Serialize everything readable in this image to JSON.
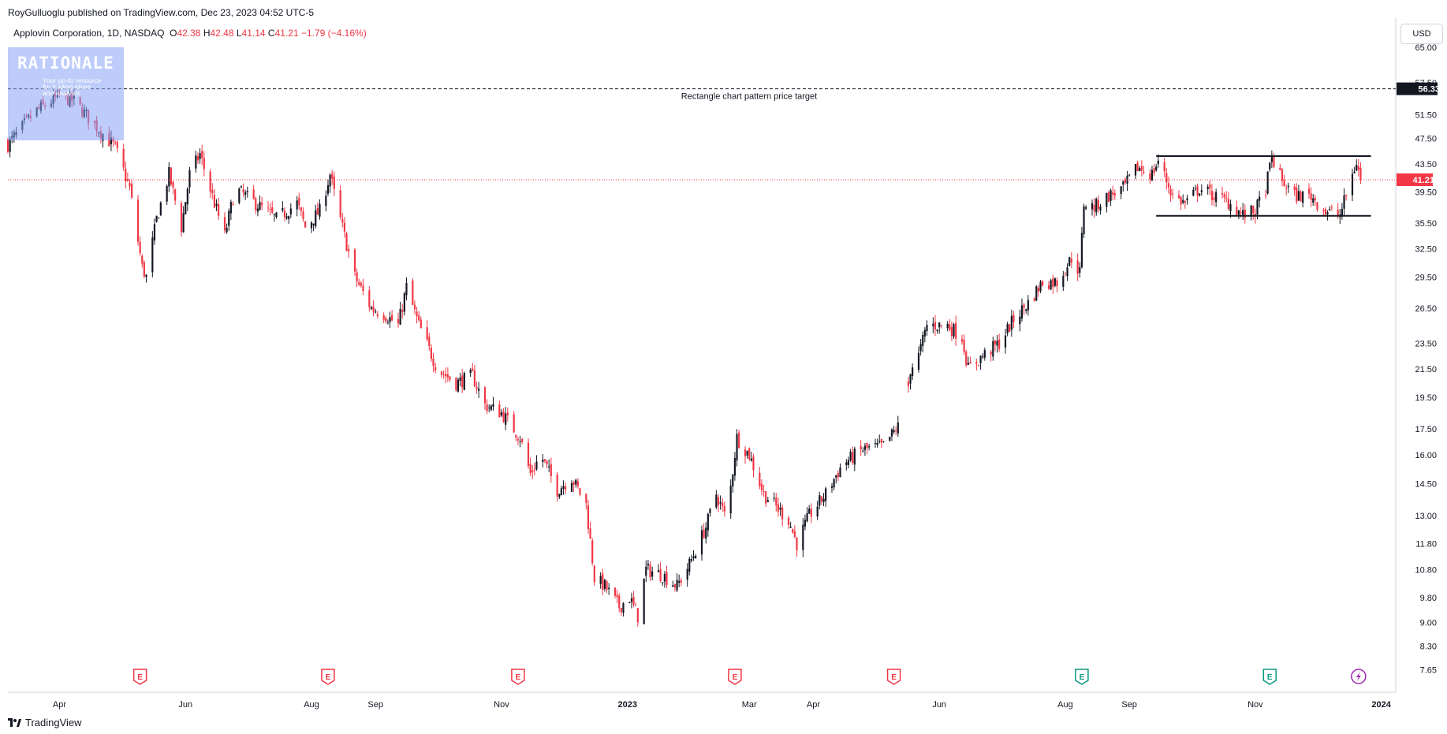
{
  "header": {
    "published": "RoyGulluoglu published on TradingView.com, Dec 23, 2023 04:52 UTC-5",
    "symbol_desc": "Applovin Corporation, 1D, NASDAQ",
    "o_label": "O",
    "o_value": "42.38",
    "h_label": "H",
    "h_value": "42.48",
    "l_label": "L",
    "l_value": "41.14",
    "c_label": "C",
    "c_value": "41.21",
    "change": "−1.79 (−4.16%)"
  },
  "watermark": {
    "name": "RATIONALE",
    "tagline_1": "Your go-to resource",
    "tagline_2": "for trading ideas",
    "tagline_3": "and analysis"
  },
  "currency_button": "USD",
  "brand": {
    "label": "TradingView"
  },
  "colors": {
    "up": "#131722",
    "down": "#f23645",
    "grid": "#f0f3fa",
    "last_price": "#f23645",
    "earnings_red": "#f23645",
    "earnings_green": "#089981",
    "dividend_purple": "#9c27b0"
  },
  "chart_data": {
    "type": "candlestick",
    "title": "Applovin Corporation, 1D, NASDAQ",
    "y_scale": "log",
    "ylim": [
      7.2,
      72
    ],
    "y_ticks": [
      "65.00",
      "57.50",
      "51.50",
      "47.50",
      "43.50",
      "39.50",
      "35.50",
      "32.50",
      "29.50",
      "26.50",
      "23.50",
      "21.50",
      "19.50",
      "17.50",
      "16.00",
      "14.50",
      "13.00",
      "11.80",
      "10.80",
      "9.80",
      "9.00",
      "8.30",
      "7.65"
    ],
    "x_range": [
      "2022-03-07",
      "2024-01-08"
    ],
    "x_ticks": [
      {
        "label": "Apr",
        "date": "2022-04-01"
      },
      {
        "label": "Jun",
        "date": "2022-06-01"
      },
      {
        "label": "Aug",
        "date": "2022-08-01"
      },
      {
        "label": "Sep",
        "date": "2022-09-01"
      },
      {
        "label": "Nov",
        "date": "2022-11-01"
      },
      {
        "label": "2023",
        "date": "2023-01-01",
        "bold": true
      },
      {
        "label": "Mar",
        "date": "2023-03-01"
      },
      {
        "label": "Apr",
        "date": "2023-04-01"
      },
      {
        "label": "Jun",
        "date": "2023-06-01"
      },
      {
        "label": "Aug",
        "date": "2023-08-01"
      },
      {
        "label": "Sep",
        "date": "2023-09-01"
      },
      {
        "label": "Nov",
        "date": "2023-11-01"
      },
      {
        "label": "2024",
        "date": "2024-01-01",
        "bold": true
      }
    ],
    "close_path": [
      [
        "2022-03-07",
        46.5
      ],
      [
        "2022-03-20",
        52
      ],
      [
        "2022-04-01",
        55
      ],
      [
        "2022-04-08",
        54
      ],
      [
        "2022-04-20",
        49
      ],
      [
        "2022-04-28",
        46
      ],
      [
        "2022-05-05",
        40
      ],
      [
        "2022-05-11",
        30.5
      ],
      [
        "2022-05-13",
        29.5
      ],
      [
        "2022-05-18",
        36
      ],
      [
        "2022-05-24",
        42
      ],
      [
        "2022-05-30",
        35
      ],
      [
        "2022-06-03",
        42
      ],
      [
        "2022-06-08",
        45
      ],
      [
        "2022-06-15",
        38
      ],
      [
        "2022-06-20",
        34
      ],
      [
        "2022-06-25",
        40
      ],
      [
        "2022-07-05",
        38
      ],
      [
        "2022-07-15",
        36
      ],
      [
        "2022-07-25",
        38
      ],
      [
        "2022-07-29",
        35
      ],
      [
        "2022-08-05",
        37
      ],
      [
        "2022-08-10",
        42
      ],
      [
        "2022-08-13",
        38
      ],
      [
        "2022-08-22",
        29.5
      ],
      [
        "2022-08-30",
        26.5
      ],
      [
        "2022-09-05",
        26
      ],
      [
        "2022-09-12",
        25
      ],
      [
        "2022-09-16",
        28.5
      ],
      [
        "2022-09-22",
        25
      ],
      [
        "2022-10-01",
        21.5
      ],
      [
        "2022-10-10",
        20.5
      ],
      [
        "2022-10-18",
        21
      ],
      [
        "2022-10-24",
        19
      ],
      [
        "2022-11-01",
        18.5
      ],
      [
        "2022-11-10",
        17
      ],
      [
        "2022-11-15",
        15
      ],
      [
        "2022-11-20",
        16
      ],
      [
        "2022-11-28",
        14.2
      ],
      [
        "2022-12-05",
        14.8
      ],
      [
        "2022-12-12",
        13.5
      ],
      [
        "2022-12-16",
        10.5
      ],
      [
        "2022-12-21",
        10.2
      ],
      [
        "2022-12-28",
        9.5
      ],
      [
        "2023-01-02",
        9.8
      ],
      [
        "2023-01-06",
        9.2
      ],
      [
        "2023-01-10",
        10.8
      ],
      [
        "2023-01-18",
        10.6
      ],
      [
        "2023-01-25",
        10.2
      ],
      [
        "2023-01-31",
        11
      ],
      [
        "2023-02-08",
        12.5
      ],
      [
        "2023-02-13",
        14
      ],
      [
        "2023-02-18",
        12.8
      ],
      [
        "2023-02-23",
        17
      ],
      [
        "2023-03-01",
        16
      ],
      [
        "2023-03-08",
        14
      ],
      [
        "2023-03-15",
        13.3
      ],
      [
        "2023-03-20",
        12.8
      ],
      [
        "2023-03-24",
        11.8
      ],
      [
        "2023-03-30",
        13
      ],
      [
        "2023-04-07",
        14
      ],
      [
        "2023-04-15",
        15.5
      ],
      [
        "2023-04-25",
        16.3
      ],
      [
        "2023-05-05",
        16.5
      ],
      [
        "2023-05-11",
        17.5
      ],
      [
        "2023-05-15",
        18
      ],
      [
        "2023-05-18",
        21.5
      ],
      [
        "2023-05-22",
        22.5
      ],
      [
        "2023-05-26",
        25
      ],
      [
        "2023-06-05",
        25
      ],
      [
        "2023-06-12",
        24
      ],
      [
        "2023-06-15",
        21.5
      ],
      [
        "2023-06-22",
        22.5
      ],
      [
        "2023-06-30",
        23.5
      ],
      [
        "2023-07-07",
        25.5
      ],
      [
        "2023-07-14",
        27
      ],
      [
        "2023-07-21",
        29
      ],
      [
        "2023-07-28",
        29
      ],
      [
        "2023-08-04",
        31.5
      ],
      [
        "2023-08-08",
        30
      ],
      [
        "2023-08-10",
        38
      ],
      [
        "2023-08-15",
        37.5
      ],
      [
        "2023-08-22",
        39
      ],
      [
        "2023-08-29",
        40
      ],
      [
        "2023-09-05",
        43
      ],
      [
        "2023-09-12",
        42
      ],
      [
        "2023-09-15",
        44
      ],
      [
        "2023-09-22",
        39
      ],
      [
        "2023-09-28",
        38
      ],
      [
        "2023-10-05",
        40
      ],
      [
        "2023-10-12",
        39
      ],
      [
        "2023-10-20",
        38
      ],
      [
        "2023-10-26",
        36.5
      ],
      [
        "2023-11-01",
        37
      ],
      [
        "2023-11-06",
        40
      ],
      [
        "2023-11-09",
        44.5
      ],
      [
        "2023-11-14",
        41
      ],
      [
        "2023-11-20",
        39
      ],
      [
        "2023-11-28",
        39
      ],
      [
        "2023-12-05",
        37
      ],
      [
        "2023-12-12",
        36.5
      ],
      [
        "2023-12-16",
        40
      ],
      [
        "2023-12-20",
        43.8
      ],
      [
        "2023-12-22",
        41.2
      ]
    ],
    "gap": {
      "from": "2023-05-12",
      "to": "2023-05-17"
    },
    "last_close": 41.21,
    "last_label": "41.21",
    "annotations": [
      {
        "type": "hline",
        "style": "dashed",
        "price": 56.33,
        "label": "56.33",
        "text": "Rectangle chart pattern price target"
      },
      {
        "type": "segment",
        "price": 44.7,
        "from": "2023-09-14",
        "to": "2023-12-27"
      },
      {
        "type": "segment",
        "price": 36.4,
        "from": "2023-09-14",
        "to": "2023-12-27"
      }
    ],
    "events": [
      {
        "kind": "earnings",
        "letter": "E",
        "date": "2022-05-10",
        "color": "red"
      },
      {
        "kind": "earnings",
        "letter": "E",
        "date": "2022-08-09",
        "color": "red"
      },
      {
        "kind": "earnings",
        "letter": "E",
        "date": "2022-11-09",
        "color": "red"
      },
      {
        "kind": "earnings",
        "letter": "E",
        "date": "2023-02-22",
        "color": "red"
      },
      {
        "kind": "earnings",
        "letter": "E",
        "date": "2023-05-10",
        "color": "red"
      },
      {
        "kind": "earnings",
        "letter": "E",
        "date": "2023-08-09",
        "color": "green"
      },
      {
        "kind": "earnings",
        "letter": "E",
        "date": "2023-11-08",
        "color": "green"
      },
      {
        "kind": "dividend",
        "date": "2023-12-21",
        "color": "purple"
      }
    ]
  }
}
